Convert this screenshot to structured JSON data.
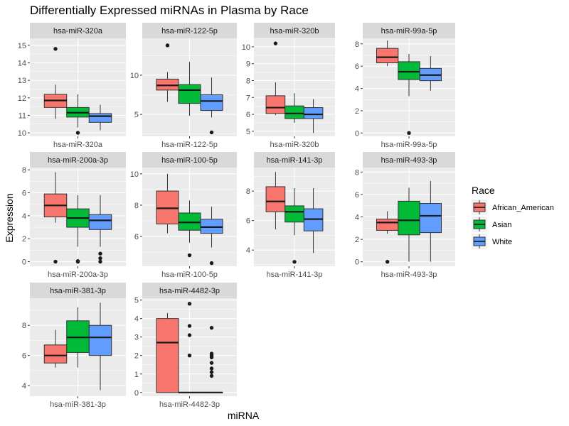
{
  "chart_data": {
    "type": "boxplot",
    "title": "Differentially Expressed miRNAs in Plasma by Race",
    "xlabel": "miRNA",
    "ylabel": "Expression",
    "legend": {
      "title": "Race",
      "placement": "right",
      "entries": [
        {
          "name": "African_American",
          "color": "#F8766D"
        },
        {
          "name": "Asian",
          "color": "#00BA38"
        },
        {
          "name": "White",
          "color": "#619CFF"
        }
      ]
    },
    "panels": [
      {
        "name": "hsa-miR-320a",
        "x_tick": "hsa-miR-320a",
        "ylim": [
          9.8,
          15.4
        ],
        "yticks": [
          10,
          11,
          12,
          13,
          14,
          15
        ],
        "boxes": [
          {
            "group": "African_American",
            "min": 10.8,
            "q1": 11.45,
            "median": 11.85,
            "q3": 12.2,
            "max": 12.75,
            "outliers": [
              14.8
            ]
          },
          {
            "group": "Asian",
            "min": 10.3,
            "q1": 10.9,
            "median": 11.15,
            "q3": 11.45,
            "max": 12.2,
            "outliers": [
              10.0
            ]
          },
          {
            "group": "White",
            "min": 10.15,
            "q1": 10.6,
            "median": 10.95,
            "q3": 11.1,
            "max": 11.6,
            "outliers": []
          }
        ]
      },
      {
        "name": "hsa-miR-122-5p",
        "x_tick": "hsa-miR-122-5p",
        "ylim": [
          2.2,
          14.7
        ],
        "yticks": [
          5,
          10
        ],
        "boxes": [
          {
            "group": "African_American",
            "min": 6.6,
            "q1": 8.1,
            "median": 8.7,
            "q3": 9.5,
            "max": 10.4,
            "outliers": [
              13.8
            ]
          },
          {
            "group": "Asian",
            "min": 4.8,
            "q1": 6.4,
            "median": 8.1,
            "q3": 8.8,
            "max": 11.7,
            "outliers": []
          },
          {
            "group": "White",
            "min": 4.6,
            "q1": 5.5,
            "median": 6.7,
            "q3": 7.5,
            "max": 9.7,
            "outliers": [
              2.7
            ]
          }
        ]
      },
      {
        "name": "hsa-miR-320b",
        "x_tick": "hsa-miR-320b",
        "ylim": [
          4.7,
          10.5
        ],
        "yticks": [
          5,
          6,
          7,
          8,
          9,
          10
        ],
        "boxes": [
          {
            "group": "African_American",
            "min": 5.95,
            "q1": 6.05,
            "median": 6.4,
            "q3": 7.1,
            "max": 7.9,
            "outliers": [
              10.2
            ]
          },
          {
            "group": "Asian",
            "min": 5.5,
            "q1": 5.75,
            "median": 6.05,
            "q3": 6.5,
            "max": 7.25,
            "outliers": []
          },
          {
            "group": "White",
            "min": 4.9,
            "q1": 5.75,
            "median": 6.0,
            "q3": 6.4,
            "max": 6.9,
            "outliers": []
          }
        ]
      },
      {
        "name": "hsa-miR-99a-5p",
        "x_tick": "hsa-miR-99a-5p",
        "ylim": [
          -0.3,
          8.5
        ],
        "yticks": [
          0,
          2,
          4,
          6,
          8
        ],
        "boxes": [
          {
            "group": "African_American",
            "min": 6.0,
            "q1": 6.3,
            "median": 6.8,
            "q3": 7.6,
            "max": 8.3,
            "outliers": []
          },
          {
            "group": "Asian",
            "min": 3.3,
            "q1": 4.8,
            "median": 5.5,
            "q3": 6.4,
            "max": 7.1,
            "outliers": [
              0.0
            ]
          },
          {
            "group": "White",
            "min": 3.8,
            "q1": 4.7,
            "median": 5.2,
            "q3": 5.8,
            "max": 6.9,
            "outliers": []
          }
        ]
      },
      {
        "name": "hsa-miR-200a-3p",
        "x_tick": "hsa-miR-200a-3p",
        "ylim": [
          -0.4,
          8.2
        ],
        "yticks": [
          0,
          2,
          4,
          6,
          8
        ],
        "boxes": [
          {
            "group": "African_American",
            "min": 3.4,
            "q1": 3.9,
            "median": 4.9,
            "q3": 5.9,
            "max": 7.8,
            "outliers": [
              0.0
            ]
          },
          {
            "group": "Asian",
            "min": 1.3,
            "q1": 3.0,
            "median": 3.8,
            "q3": 4.6,
            "max": 5.8,
            "outliers": [
              0.0,
              0.05
            ]
          },
          {
            "group": "White",
            "min": 1.3,
            "q1": 2.8,
            "median": 3.6,
            "q3": 4.1,
            "max": 5.8,
            "outliers": [
              0.7,
              0.3,
              0.0
            ]
          }
        ]
      },
      {
        "name": "hsa-miR-100-5p",
        "x_tick": "hsa-miR-100-5p",
        "ylim": [
          4.1,
          10.4
        ],
        "yticks": [
          6,
          8,
          10
        ],
        "boxes": [
          {
            "group": "African_American",
            "min": 6.2,
            "q1": 6.8,
            "median": 7.8,
            "q3": 8.9,
            "max": 10.0,
            "outliers": []
          },
          {
            "group": "Asian",
            "min": 5.6,
            "q1": 6.4,
            "median": 6.9,
            "q3": 7.5,
            "max": 8.3,
            "outliers": [
              4.8
            ]
          },
          {
            "group": "White",
            "min": 5.3,
            "q1": 6.2,
            "median": 6.6,
            "q3": 7.1,
            "max": 7.9,
            "outliers": [
              4.3
            ]
          }
        ]
      },
      {
        "name": "hsa-miR-141-3p",
        "x_tick": "hsa-miR-141-3p",
        "ylim": [
          2.9,
          9.6
        ],
        "yticks": [
          4,
          6,
          8
        ],
        "boxes": [
          {
            "group": "African_American",
            "min": 5.4,
            "q1": 6.6,
            "median": 7.3,
            "q3": 8.3,
            "max": 9.3,
            "outliers": []
          },
          {
            "group": "Asian",
            "min": 5.0,
            "q1": 5.9,
            "median": 6.6,
            "q3": 7.0,
            "max": 8.2,
            "outliers": [
              3.2
            ]
          },
          {
            "group": "White",
            "min": 3.8,
            "q1": 5.3,
            "median": 6.1,
            "q3": 6.8,
            "max": 8.2,
            "outliers": []
          }
        ]
      },
      {
        "name": "hsa-miR-493-3p",
        "x_tick": "hsa-miR-493-3p",
        "ylim": [
          -0.4,
          8.4
        ],
        "yticks": [
          0,
          2,
          4,
          6,
          8
        ],
        "boxes": [
          {
            "group": "African_American",
            "min": 2.5,
            "q1": 2.8,
            "median": 3.5,
            "q3": 3.8,
            "max": 4.5,
            "outliers": [
              0.0
            ]
          },
          {
            "group": "Asian",
            "min": 0.0,
            "q1": 2.4,
            "median": 3.7,
            "q3": 5.4,
            "max": 6.6,
            "outliers": []
          },
          {
            "group": "White",
            "min": 0.0,
            "q1": 2.6,
            "median": 4.1,
            "q3": 5.2,
            "max": 7.2,
            "outliers": []
          }
        ]
      },
      {
        "name": "hsa-miR-381-3p",
        "x_tick": "hsa-miR-381-3p",
        "ylim": [
          3.3,
          9.8
        ],
        "yticks": [
          4,
          6,
          8
        ],
        "boxes": [
          {
            "group": "African_American",
            "min": 5.2,
            "q1": 5.5,
            "median": 6.0,
            "q3": 6.7,
            "max": 7.7,
            "outliers": []
          },
          {
            "group": "Asian",
            "min": 5.2,
            "q1": 6.2,
            "median": 7.2,
            "q3": 8.3,
            "max": 9.2,
            "outliers": []
          },
          {
            "group": "White",
            "min": 3.7,
            "q1": 6.0,
            "median": 7.2,
            "q3": 8.0,
            "max": 9.5,
            "outliers": []
          }
        ]
      },
      {
        "name": "hsa-miR-4482-3p",
        "x_tick": "hsa-miR-4482-3p",
        "ylim": [
          -0.2,
          5.1
        ],
        "yticks": [
          0,
          1,
          2,
          3,
          4,
          5
        ],
        "boxes": [
          {
            "group": "African_American",
            "min": 0.0,
            "q1": 0.0,
            "median": 2.7,
            "q3": 4.0,
            "max": 4.3,
            "outliers": []
          },
          {
            "group": "Asian",
            "min": 0.0,
            "q1": 0.0,
            "median": 0.0,
            "q3": 0.0,
            "max": 0.0,
            "outliers": [
              4.8,
              3.6,
              3.1,
              2.0
            ]
          },
          {
            "group": "White",
            "min": 0.0,
            "q1": 0.0,
            "median": 0.0,
            "q3": 0.0,
            "max": 0.0,
            "outliers": [
              3.5,
              2.1,
              2.0,
              1.9,
              1.6,
              1.3,
              1.1,
              0.9
            ]
          }
        ]
      }
    ]
  }
}
